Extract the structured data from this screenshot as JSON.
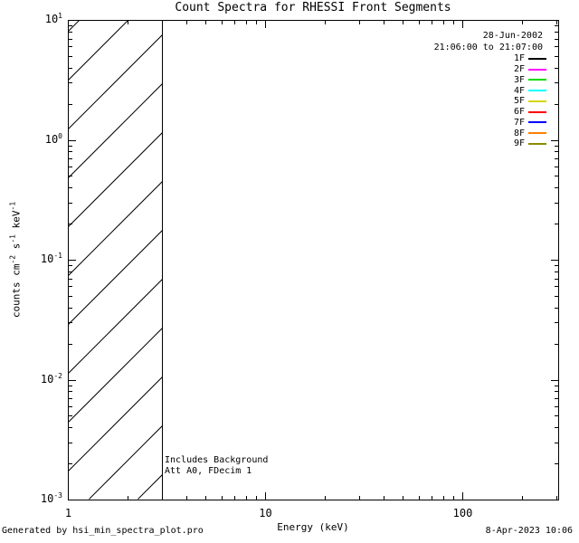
{
  "title": "Count Spectra for RHESSI Front Segments",
  "header": {
    "date": "28-Jun-2002",
    "time_range": "21:06:00 to 21:07:00"
  },
  "legend": {
    "entries": [
      {
        "label": "1F",
        "color": "#000000"
      },
      {
        "label": "2F",
        "color": "#ff00ff"
      },
      {
        "label": "3F",
        "color": "#00dd00"
      },
      {
        "label": "4F",
        "color": "#00ffff"
      },
      {
        "label": "5F",
        "color": "#d6d600"
      },
      {
        "label": "6F",
        "color": "#ff0000"
      },
      {
        "label": "7F",
        "color": "#0000ff"
      },
      {
        "label": "8F",
        "color": "#ff8000"
      },
      {
        "label": "9F",
        "color": "#8b8b00"
      }
    ]
  },
  "annotations": [
    "Includes Background",
    "Att A0, FDecim 1"
  ],
  "footer": {
    "left": "Generated by hsi_min_spectra_plot.pro",
    "right": "8-Apr-2023 10:06"
  },
  "colors": {
    "background": "#ffffff",
    "axis": "#000000"
  },
  "chart_data": {
    "type": "line",
    "title": "Count Spectra for RHESSI Front Segments",
    "xlabel": "Energy (keV)",
    "ylabel": "counts cm^-2 s^-1 keV^-1",
    "ylabel_parts": [
      {
        "text": "counts cm"
      },
      {
        "sup": "-2"
      },
      {
        "text": " s"
      },
      {
        "sup": "-1"
      },
      {
        "text": " keV"
      },
      {
        "sup": "-1"
      }
    ],
    "xscale": "log",
    "yscale": "log",
    "xlim": [
      1,
      306
    ],
    "ylim": [
      0.001,
      10
    ],
    "x_major_ticks": [
      1,
      10,
      100
    ],
    "x_tick_labels": [
      "1",
      "10",
      "100"
    ],
    "y_major_ticks": [
      10,
      1,
      0.1,
      0.01,
      0.001
    ],
    "grid": false,
    "legend_position": "upper-right",
    "series": [],
    "hatch_band": {
      "x_from": 1,
      "x_to": 3,
      "style": "diagonal-hatch"
    }
  }
}
